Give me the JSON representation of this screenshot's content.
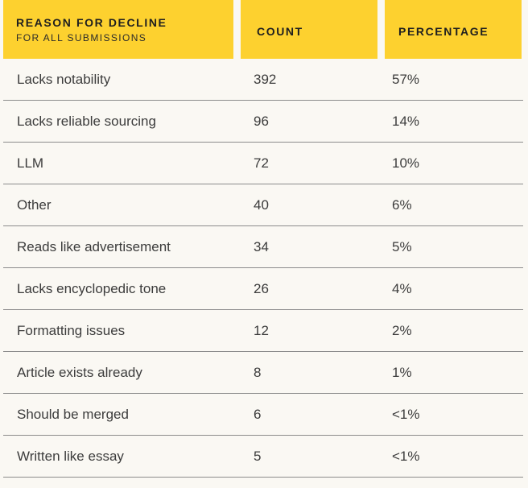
{
  "header": {
    "reason_label": "REASON FOR DECLINE",
    "reason_sublabel": "FOR ALL SUBMISSIONS",
    "count_label": "COUNT",
    "percentage_label": "PERCENTAGE",
    "color": "#fdd12f"
  },
  "rows": [
    {
      "reason": "Lacks notability",
      "count": "392",
      "percentage": "57%"
    },
    {
      "reason": "Lacks reliable sourcing",
      "count": "96",
      "percentage": "14%"
    },
    {
      "reason": "LLM",
      "count": "72",
      "percentage": "10%"
    },
    {
      "reason": "Other",
      "count": "40",
      "percentage": "6%"
    },
    {
      "reason": "Reads like advertisement",
      "count": "34",
      "percentage": "5%"
    },
    {
      "reason": "Lacks encyclopedic tone",
      "count": "26",
      "percentage": "4%"
    },
    {
      "reason": "Formatting issues",
      "count": "12",
      "percentage": "2%"
    },
    {
      "reason": "Article exists already",
      "count": "8",
      "percentage": "1%"
    },
    {
      "reason": "Should be merged",
      "count": "6",
      "percentage": "<1%"
    },
    {
      "reason": "Written like essay",
      "count": "5",
      "percentage": "<1%"
    }
  ]
}
